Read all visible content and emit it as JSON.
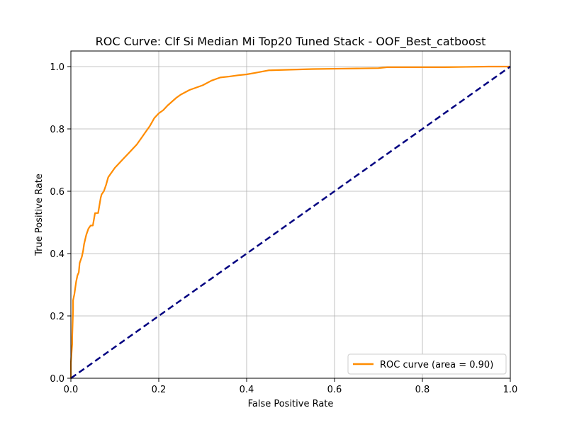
{
  "chart_data": {
    "type": "line",
    "title": "ROC Curve: Clf Si Median Mi Top20 Tuned Stack - OOF_Best_catboost",
    "xlabel": "False Positive Rate",
    "ylabel": "True Positive Rate",
    "xlim": [
      0.0,
      1.0
    ],
    "ylim": [
      0.0,
      1.05
    ],
    "xticks": [
      "0.0",
      "0.2",
      "0.4",
      "0.6",
      "0.8",
      "1.0"
    ],
    "yticks": [
      "0.0",
      "0.2",
      "0.4",
      "0.6",
      "0.8",
      "1.0"
    ],
    "grid": true,
    "legend_position": "lower-right",
    "series": [
      {
        "name": "ROC curve (area = 0.90)",
        "color": "#ff8c00",
        "style": "solid",
        "x": [
          0.0,
          0.0,
          0.003,
          0.003,
          0.005,
          0.005,
          0.008,
          0.01,
          0.012,
          0.015,
          0.018,
          0.02,
          0.025,
          0.028,
          0.03,
          0.035,
          0.04,
          0.045,
          0.05,
          0.055,
          0.06,
          0.062,
          0.068,
          0.07,
          0.075,
          0.08,
          0.085,
          0.09,
          0.095,
          0.1,
          0.11,
          0.12,
          0.13,
          0.14,
          0.15,
          0.16,
          0.17,
          0.175,
          0.18,
          0.19,
          0.2,
          0.21,
          0.22,
          0.24,
          0.25,
          0.27,
          0.3,
          0.32,
          0.34,
          0.36,
          0.38,
          0.4,
          0.42,
          0.45,
          0.5,
          0.55,
          0.6,
          0.65,
          0.7,
          0.72,
          0.75,
          0.8,
          0.85,
          0.9,
          0.95,
          1.0
        ],
        "y": [
          0.0,
          0.05,
          0.11,
          0.13,
          0.22,
          0.25,
          0.27,
          0.29,
          0.31,
          0.33,
          0.34,
          0.37,
          0.39,
          0.41,
          0.43,
          0.46,
          0.48,
          0.49,
          0.49,
          0.53,
          0.53,
          0.53,
          0.58,
          0.59,
          0.6,
          0.62,
          0.645,
          0.655,
          0.665,
          0.675,
          0.69,
          0.705,
          0.72,
          0.735,
          0.75,
          0.77,
          0.79,
          0.8,
          0.81,
          0.835,
          0.85,
          0.86,
          0.875,
          0.9,
          0.91,
          0.925,
          0.94,
          0.955,
          0.965,
          0.968,
          0.972,
          0.975,
          0.98,
          0.988,
          0.99,
          0.992,
          0.993,
          0.994,
          0.995,
          0.998,
          0.998,
          0.998,
          0.998,
          0.999,
          1.0,
          1.0
        ]
      },
      {
        "name": "",
        "color": "#000080",
        "style": "dashed",
        "x": [
          0.0,
          1.0
        ],
        "y": [
          0.0,
          1.0
        ]
      }
    ]
  }
}
